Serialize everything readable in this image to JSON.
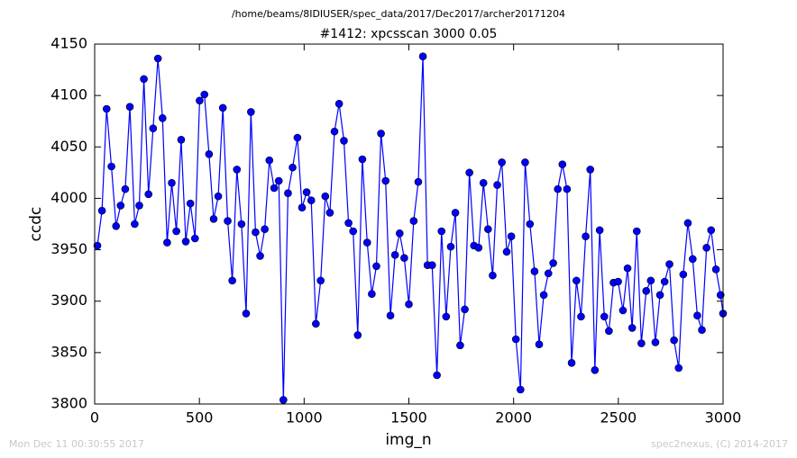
{
  "chart_data": {
    "type": "line",
    "header": "/home/beams/8IDIUSER/spec_data/2017/Dec2017/archer20171204",
    "title": "#1412: xpcsscan 3000 0.05",
    "x_label": "img_n",
    "y_label": "ccdc",
    "footer_left": "Mon Dec 11 00:30:55 2017",
    "footer_right": "spec2nexus, (C) 2014-2017",
    "xlim": [
      0,
      3000
    ],
    "ylim": [
      3800,
      4150
    ],
    "xticks": [
      0,
      500,
      1000,
      1500,
      2000,
      2500,
      3000
    ],
    "yticks": [
      3800,
      3850,
      3900,
      3950,
      4000,
      4050,
      4100,
      4150
    ],
    "grid": false,
    "series": [
      {
        "name": "ccdc",
        "color": "#0000ff",
        "x": [
          13,
          35,
          57,
          80,
          102,
          124,
          146,
          168,
          191,
          213,
          235,
          257,
          279,
          302,
          324,
          346,
          368,
          390,
          413,
          435,
          457,
          479,
          501,
          524,
          546,
          568,
          590,
          612,
          635,
          657,
          679,
          701,
          723,
          746,
          768,
          790,
          812,
          834,
          857,
          879,
          901,
          923,
          945,
          968,
          990,
          1012,
          1034,
          1056,
          1079,
          1101,
          1123,
          1145,
          1167,
          1190,
          1212,
          1234,
          1256,
          1278,
          1301,
          1323,
          1345,
          1367,
          1389,
          1412,
          1434,
          1456,
          1478,
          1500,
          1523,
          1545,
          1567,
          1589,
          1611,
          1634,
          1656,
          1678,
          1700,
          1722,
          1745,
          1767,
          1789,
          1811,
          1833,
          1856,
          1878,
          1900,
          1922,
          1944,
          1967,
          1989,
          2011,
          2033,
          2055,
          2078,
          2100,
          2122,
          2144,
          2166,
          2189,
          2211,
          2233,
          2255,
          2277,
          2300,
          2322,
          2344,
          2366,
          2388,
          2411,
          2433,
          2455,
          2477,
          2499,
          2522,
          2544,
          2566,
          2588,
          2610,
          2633,
          2655,
          2677,
          2699,
          2721,
          2744,
          2766,
          2788,
          2810,
          2832,
          2855,
          2877,
          2899,
          2921,
          2943,
          2966,
          2988,
          3000
        ],
        "values": [
          3954,
          3988,
          4087,
          4031,
          3973,
          3993,
          4009,
          4089,
          3975,
          3993,
          4116,
          4004,
          4068,
          4136,
          4078,
          3957,
          4015,
          3968,
          4057,
          3958,
          3995,
          3961,
          4095,
          4101,
          4043,
          3980,
          4002,
          4088,
          3978,
          3920,
          4028,
          3975,
          3888,
          4084,
          3967,
          3944,
          3970,
          4037,
          4010,
          4017,
          3804,
          4005,
          4030,
          4059,
          3991,
          4006,
          3998,
          3878,
          3920,
          4002,
          3986,
          4065,
          4092,
          4056,
          3976,
          3968,
          3867,
          4038,
          3957,
          3907,
          3934,
          4063,
          4017,
          3886,
          3945,
          3966,
          3942,
          3897,
          3978,
          4016,
          4138,
          3935,
          3935,
          3828,
          3968,
          3885,
          3953,
          3986,
          3857,
          3892,
          4025,
          3954,
          3952,
          4015,
          3970,
          3925,
          4013,
          4035,
          3948,
          3963,
          3863,
          3814,
          4035,
          3975,
          3929,
          3858,
          3906,
          3927,
          3937,
          4009,
          4033,
          4009,
          3840,
          3920,
          3885,
          3963,
          4028,
          3833,
          3969,
          3885,
          3871,
          3918,
          3919,
          3891,
          3932,
          3874,
          3968,
          3859,
          3910,
          3920,
          3860,
          3906,
          3919,
          3936,
          3862,
          3835,
          3926,
          3976,
          3941,
          3886,
          3872,
          3952,
          3969,
          3931,
          3906,
          3888
        ]
      }
    ]
  }
}
